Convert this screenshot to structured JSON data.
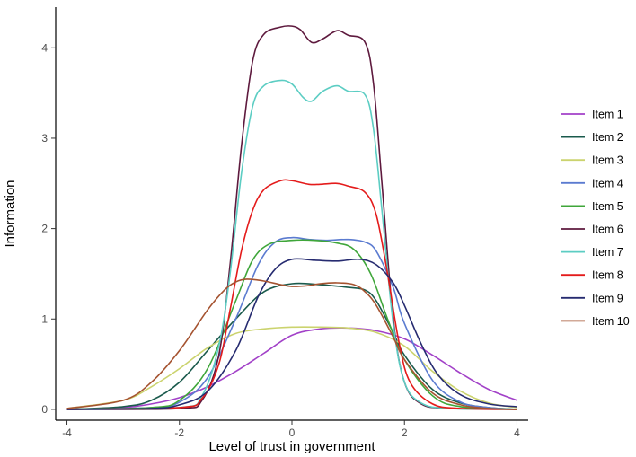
{
  "chart_data": {
    "type": "line",
    "title": "",
    "xlabel": "Level of trust in government",
    "ylabel": "Information",
    "xlim": [
      -4.2,
      4.2
    ],
    "ylim": [
      -0.12,
      4.45
    ],
    "x_ticks": [
      -4,
      -2,
      0,
      2,
      4
    ],
    "y_ticks": [
      0,
      1,
      2,
      3,
      4
    ],
    "grid": false,
    "legend_position": "right",
    "series": [
      {
        "name": "Item 1",
        "color": "#a241c8",
        "points": [
          [
            -4,
            0.0
          ],
          [
            -3,
            0.02
          ],
          [
            -2.5,
            0.06
          ],
          [
            -2,
            0.13
          ],
          [
            -1.5,
            0.25
          ],
          [
            -1,
            0.42
          ],
          [
            -0.5,
            0.62
          ],
          [
            0,
            0.82
          ],
          [
            0.5,
            0.89
          ],
          [
            1,
            0.9
          ],
          [
            1.5,
            0.87
          ],
          [
            2,
            0.78
          ],
          [
            2.5,
            0.6
          ],
          [
            3,
            0.4
          ],
          [
            3.5,
            0.22
          ],
          [
            4,
            0.1
          ]
        ]
      },
      {
        "name": "Item 2",
        "color": "#1a5a4c",
        "points": [
          [
            -4,
            0.0
          ],
          [
            -3,
            0.03
          ],
          [
            -2.5,
            0.1
          ],
          [
            -2,
            0.3
          ],
          [
            -1.5,
            0.65
          ],
          [
            -1,
            1.0
          ],
          [
            -0.5,
            1.3
          ],
          [
            0,
            1.39
          ],
          [
            0.5,
            1.38
          ],
          [
            1,
            1.35
          ],
          [
            1.3,
            1.32
          ],
          [
            1.5,
            1.2
          ],
          [
            1.8,
            0.85
          ],
          [
            2,
            0.6
          ],
          [
            2.5,
            0.22
          ],
          [
            3,
            0.07
          ],
          [
            3.5,
            0.02
          ],
          [
            4,
            0.0
          ]
        ]
      },
      {
        "name": "Item 3",
        "color": "#cbd36e",
        "points": [
          [
            -4,
            0.01
          ],
          [
            -3,
            0.1
          ],
          [
            -2.5,
            0.25
          ],
          [
            -2,
            0.45
          ],
          [
            -1.5,
            0.68
          ],
          [
            -1,
            0.84
          ],
          [
            -0.5,
            0.89
          ],
          [
            0,
            0.91
          ],
          [
            0.5,
            0.91
          ],
          [
            1,
            0.9
          ],
          [
            1.5,
            0.85
          ],
          [
            2,
            0.7
          ],
          [
            2.5,
            0.42
          ],
          [
            3,
            0.2
          ],
          [
            3.5,
            0.07
          ],
          [
            4,
            0.02
          ]
        ]
      },
      {
        "name": "Item 4",
        "color": "#5b7bd0",
        "points": [
          [
            -4,
            0.0
          ],
          [
            -2.5,
            0.02
          ],
          [
            -2,
            0.08
          ],
          [
            -1.5,
            0.35
          ],
          [
            -1,
            1.0
          ],
          [
            -0.6,
            1.6
          ],
          [
            -0.3,
            1.85
          ],
          [
            0,
            1.9
          ],
          [
            0.3,
            1.88
          ],
          [
            0.6,
            1.87
          ],
          [
            1,
            1.88
          ],
          [
            1.3,
            1.85
          ],
          [
            1.5,
            1.75
          ],
          [
            1.8,
            1.35
          ],
          [
            2,
            0.95
          ],
          [
            2.5,
            0.32
          ],
          [
            3,
            0.08
          ],
          [
            3.5,
            0.02
          ],
          [
            4,
            0.0
          ]
        ]
      },
      {
        "name": "Item 5",
        "color": "#3fa63a",
        "points": [
          [
            -4,
            0.0
          ],
          [
            -2.5,
            0.02
          ],
          [
            -2,
            0.1
          ],
          [
            -1.5,
            0.45
          ],
          [
            -1,
            1.2
          ],
          [
            -0.7,
            1.65
          ],
          [
            -0.4,
            1.83
          ],
          [
            0,
            1.87
          ],
          [
            0.4,
            1.87
          ],
          [
            0.8,
            1.84
          ],
          [
            1.1,
            1.77
          ],
          [
            1.4,
            1.5
          ],
          [
            1.7,
            1.0
          ],
          [
            2,
            0.55
          ],
          [
            2.5,
            0.15
          ],
          [
            3,
            0.03
          ],
          [
            4,
            0.0
          ]
        ]
      },
      {
        "name": "Item 6",
        "color": "#5e1a3e",
        "points": [
          [
            -4,
            0.0
          ],
          [
            -2,
            0.01
          ],
          [
            -1.6,
            0.1
          ],
          [
            -1.3,
            0.6
          ],
          [
            -1.1,
            1.6
          ],
          [
            -0.9,
            2.9
          ],
          [
            -0.7,
            3.85
          ],
          [
            -0.5,
            4.15
          ],
          [
            -0.2,
            4.23
          ],
          [
            0,
            4.24
          ],
          [
            0.15,
            4.2
          ],
          [
            0.35,
            4.06
          ],
          [
            0.55,
            4.1
          ],
          [
            0.8,
            4.19
          ],
          [
            1,
            4.14
          ],
          [
            1.3,
            4.06
          ],
          [
            1.45,
            3.6
          ],
          [
            1.6,
            2.5
          ],
          [
            1.8,
            1.0
          ],
          [
            2,
            0.3
          ],
          [
            2.3,
            0.06
          ],
          [
            2.8,
            0.01
          ],
          [
            4,
            0.0
          ]
        ]
      },
      {
        "name": "Item 7",
        "color": "#5ccdc3",
        "points": [
          [
            -4,
            0.0
          ],
          [
            -2,
            0.02
          ],
          [
            -1.6,
            0.15
          ],
          [
            -1.3,
            0.7
          ],
          [
            -1.1,
            1.5
          ],
          [
            -0.9,
            2.6
          ],
          [
            -0.7,
            3.35
          ],
          [
            -0.5,
            3.58
          ],
          [
            -0.2,
            3.64
          ],
          [
            0,
            3.6
          ],
          [
            0.2,
            3.45
          ],
          [
            0.35,
            3.41
          ],
          [
            0.55,
            3.52
          ],
          [
            0.8,
            3.58
          ],
          [
            1,
            3.52
          ],
          [
            1.3,
            3.48
          ],
          [
            1.45,
            3.1
          ],
          [
            1.6,
            2.2
          ],
          [
            1.8,
            0.95
          ],
          [
            2,
            0.3
          ],
          [
            2.3,
            0.07
          ],
          [
            2.8,
            0.01
          ],
          [
            4,
            0.0
          ]
        ]
      },
      {
        "name": "Item 8",
        "color": "#e41b1b",
        "points": [
          [
            -4,
            0.0
          ],
          [
            -2,
            0.02
          ],
          [
            -1.6,
            0.12
          ],
          [
            -1.3,
            0.5
          ],
          [
            -1.1,
            1.1
          ],
          [
            -0.9,
            1.75
          ],
          [
            -0.7,
            2.2
          ],
          [
            -0.5,
            2.43
          ],
          [
            -0.2,
            2.53
          ],
          [
            0,
            2.53
          ],
          [
            0.3,
            2.49
          ],
          [
            0.5,
            2.49
          ],
          [
            0.8,
            2.5
          ],
          [
            1,
            2.47
          ],
          [
            1.3,
            2.4
          ],
          [
            1.5,
            2.15
          ],
          [
            1.7,
            1.5
          ],
          [
            1.9,
            0.75
          ],
          [
            2.1,
            0.3
          ],
          [
            2.5,
            0.06
          ],
          [
            3,
            0.01
          ],
          [
            4,
            0.0
          ]
        ]
      },
      {
        "name": "Item 9",
        "color": "#262b70",
        "points": [
          [
            -4,
            0.0
          ],
          [
            -2.5,
            0.01
          ],
          [
            -2,
            0.05
          ],
          [
            -1.5,
            0.2
          ],
          [
            -1,
            0.65
          ],
          [
            -0.6,
            1.25
          ],
          [
            -0.3,
            1.55
          ],
          [
            0,
            1.66
          ],
          [
            0.4,
            1.65
          ],
          [
            0.8,
            1.64
          ],
          [
            1.2,
            1.66
          ],
          [
            1.5,
            1.6
          ],
          [
            1.8,
            1.4
          ],
          [
            2,
            1.15
          ],
          [
            2.3,
            0.72
          ],
          [
            2.6,
            0.38
          ],
          [
            3,
            0.16
          ],
          [
            3.5,
            0.06
          ],
          [
            4,
            0.03
          ]
        ]
      },
      {
        "name": "Item 10",
        "color": "#a55330",
        "points": [
          [
            -4,
            0.01
          ],
          [
            -3,
            0.1
          ],
          [
            -2.5,
            0.3
          ],
          [
            -2,
            0.65
          ],
          [
            -1.5,
            1.1
          ],
          [
            -1.2,
            1.32
          ],
          [
            -1,
            1.41
          ],
          [
            -0.8,
            1.44
          ],
          [
            -0.5,
            1.42
          ],
          [
            -0.2,
            1.38
          ],
          [
            0,
            1.36
          ],
          [
            0.3,
            1.37
          ],
          [
            0.5,
            1.39
          ],
          [
            0.8,
            1.4
          ],
          [
            1.1,
            1.38
          ],
          [
            1.3,
            1.3
          ],
          [
            1.5,
            1.15
          ],
          [
            1.8,
            0.8
          ],
          [
            2,
            0.55
          ],
          [
            2.5,
            0.18
          ],
          [
            3,
            0.05
          ],
          [
            3.5,
            0.01
          ],
          [
            4,
            0.0
          ]
        ]
      }
    ]
  }
}
